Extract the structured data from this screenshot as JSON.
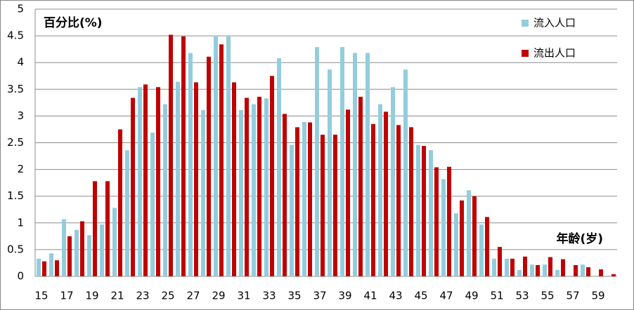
{
  "chart_data": {
    "type": "bar",
    "y_label": "百分比(%)",
    "x_label": "年龄(岁)",
    "categories": [
      "15",
      null,
      "17",
      null,
      "19",
      null,
      "21",
      null,
      "23",
      null,
      "25",
      null,
      "27",
      null,
      "29",
      null,
      "31",
      null,
      "33",
      null,
      "35",
      null,
      "37",
      null,
      "39",
      null,
      "41",
      null,
      "43",
      null,
      "45",
      null,
      "47",
      null,
      "49",
      null,
      "51",
      null,
      "53",
      null,
      "55",
      null,
      "57",
      null,
      "59",
      null
    ],
    "series": [
      {
        "name": "流入人口",
        "color": "#93cddd",
        "values": [
          0.33,
          0.43,
          1.07,
          0.87,
          0.77,
          0.97,
          1.28,
          2.36,
          3.54,
          2.69,
          3.22,
          3.64,
          4.18,
          3.11,
          4.51,
          4.51,
          3.11,
          3.22,
          3.33,
          4.08,
          2.46,
          2.89,
          4.29,
          3.87,
          4.29,
          4.18,
          4.18,
          3.22,
          3.54,
          3.87,
          2.46,
          2.36,
          1.82,
          1.18,
          1.61,
          0.97,
          0.33,
          0.33,
          0.12,
          0.22,
          0.22,
          0.12,
          0,
          0.22,
          0,
          0
        ]
      },
      {
        "name": "流出人口",
        "color": "#c00000",
        "values": [
          0.28,
          0.3,
          0.75,
          1.03,
          1.78,
          1.78,
          2.75,
          3.34,
          3.59,
          3.54,
          4.52,
          4.49,
          3.63,
          4.11,
          4.34,
          3.63,
          3.34,
          3.36,
          3.75,
          3.04,
          2.79,
          2.88,
          2.65,
          2.65,
          3.12,
          3.36,
          2.85,
          3.08,
          2.83,
          2.79,
          2.44,
          2.04,
          2.05,
          1.42,
          1.5,
          1.11,
          0.55,
          0.33,
          0.37,
          0.21,
          0.36,
          0.32,
          0.21,
          0.17,
          0.13,
          0.04
        ]
      }
    ],
    "ylim": [
      0,
      5
    ],
    "yticks": [
      0,
      0.5,
      1,
      1.5,
      2,
      2.5,
      3,
      3.5,
      4,
      4.5,
      5
    ],
    "grid": true
  }
}
